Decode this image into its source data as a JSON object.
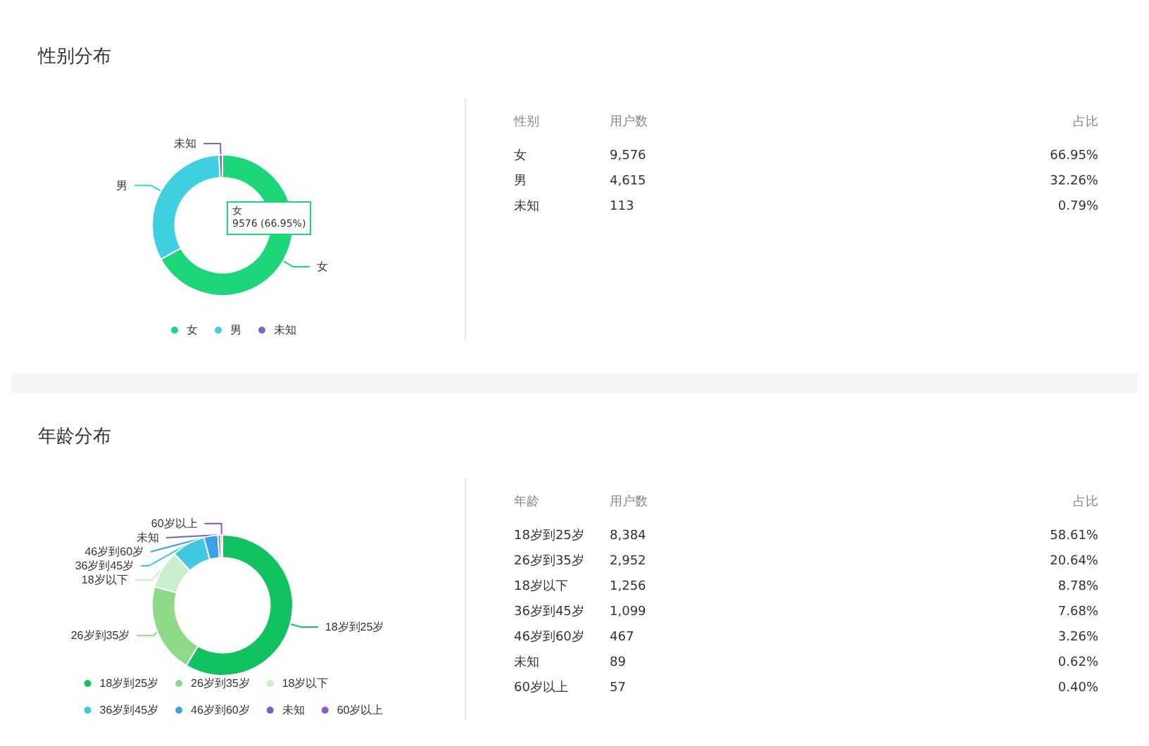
{
  "chart_data": [
    {
      "type": "donut",
      "title": "性别分布",
      "categories": [
        "女",
        "男",
        "未知"
      ],
      "values": [
        66.95,
        32.26,
        0.79
      ],
      "colors": [
        "#1ed67a",
        "#3ecfe0",
        "#6a70c8"
      ],
      "legend": "bottom",
      "annotations": [
        "女\n9576 (66.95%)"
      ]
    },
    {
      "type": "other",
      "annotations": [
        "性别",
        "用户数",
        "占比",
        "女",
        "9,576",
        "66.95%",
        "男",
        "4,615",
        "32.26%",
        "未知",
        "113",
        "0.79%"
      ]
    },
    {
      "type": "donut",
      "title": "年龄分布",
      "categories": [
        "18岁到25岁",
        "26岁到35岁",
        "18岁以下",
        "36岁到45岁",
        "46岁到60岁",
        "未知",
        "60岁以上"
      ],
      "values": [
        58.61,
        20.64,
        8.78,
        7.68,
        3.26,
        0.62,
        0.4
      ],
      "colors": [
        "#12c160",
        "#8fd98a",
        "#c9efcf",
        "#40c8e0",
        "#3ea0e8",
        "#5f6bd0",
        "#8a5ad8"
      ],
      "legend": "bottom"
    },
    {
      "type": "other",
      "annotations": [
        "年龄",
        "用户数",
        "占比",
        "18岁到25岁",
        "8,384",
        "58.61%",
        "26岁到35岁",
        "2,952",
        "20.64%",
        "18岁以下",
        "1,256",
        "8.78%",
        "36岁到45岁",
        "1,099",
        "7.68%",
        "46岁到60岁",
        "467",
        "3.26%",
        "未知",
        "89",
        "0.62%",
        "60岁以上",
        "57",
        "0.40%"
      ]
    }
  ]
}
